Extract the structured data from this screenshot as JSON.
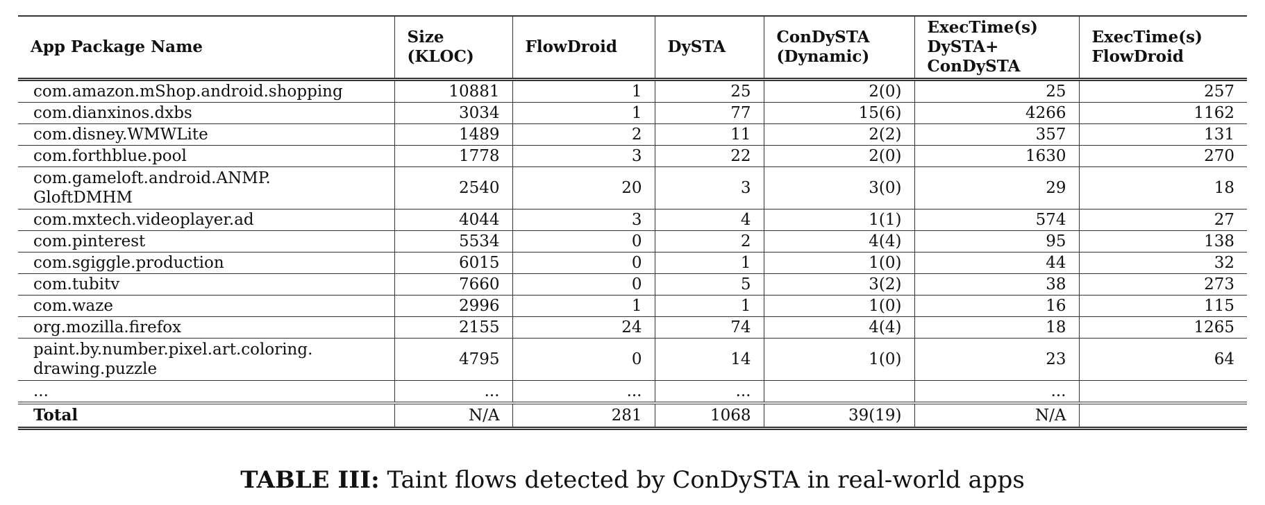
{
  "table": {
    "headers": [
      [
        "App Package Name"
      ],
      [
        "Size",
        "(KLOC)"
      ],
      [
        "FlowDroid"
      ],
      [
        "DySTA"
      ],
      [
        "ConDySTA",
        "(Dynamic)"
      ],
      [
        "ExecTime(s)",
        "DySTA+",
        "ConDySTA"
      ],
      [
        "ExecTime(s)",
        "FlowDroid"
      ]
    ],
    "rows": [
      {
        "app": [
          "com.amazon.mShop.android.shopping"
        ],
        "size": "10881",
        "flowdroid": "1",
        "dysta": "25",
        "condysta": "2(0)",
        "exec_dysta_condysta": "25",
        "exec_flowdroid": "257"
      },
      {
        "app": [
          "com.dianxinos.dxbs"
        ],
        "size": "3034",
        "flowdroid": "1",
        "dysta": "77",
        "condysta": "15(6)",
        "exec_dysta_condysta": "4266",
        "exec_flowdroid": "1162"
      },
      {
        "app": [
          "com.disney.WMWLite"
        ],
        "size": "1489",
        "flowdroid": "2",
        "dysta": "11",
        "condysta": "2(2)",
        "exec_dysta_condysta": "357",
        "exec_flowdroid": "131"
      },
      {
        "app": [
          "com.forthblue.pool"
        ],
        "size": "1778",
        "flowdroid": "3",
        "dysta": "22",
        "condysta": "2(0)",
        "exec_dysta_condysta": "1630",
        "exec_flowdroid": "270"
      },
      {
        "app": [
          "com.gameloft.android.ANMP.",
          "GloftDMHM"
        ],
        "size": "2540",
        "flowdroid": "20",
        "dysta": "3",
        "condysta": "3(0)",
        "exec_dysta_condysta": "29",
        "exec_flowdroid": "18"
      },
      {
        "app": [
          "com.mxtech.videoplayer.ad"
        ],
        "size": "4044",
        "flowdroid": "3",
        "dysta": "4",
        "condysta": "1(1)",
        "exec_dysta_condysta": "574",
        "exec_flowdroid": "27"
      },
      {
        "app": [
          "com.pinterest"
        ],
        "size": "5534",
        "flowdroid": "0",
        "dysta": "2",
        "condysta": "4(4)",
        "exec_dysta_condysta": "95",
        "exec_flowdroid": "138"
      },
      {
        "app": [
          "com.sgiggle.production"
        ],
        "size": "6015",
        "flowdroid": "0",
        "dysta": "1",
        "condysta": "1(0)",
        "exec_dysta_condysta": "44",
        "exec_flowdroid": "32"
      },
      {
        "app": [
          "com.tubitv"
        ],
        "size": "7660",
        "flowdroid": "0",
        "dysta": "5",
        "condysta": "3(2)",
        "exec_dysta_condysta": "38",
        "exec_flowdroid": "273"
      },
      {
        "app": [
          "com.waze"
        ],
        "size": "2996",
        "flowdroid": "1",
        "dysta": "1",
        "condysta": "1(0)",
        "exec_dysta_condysta": "16",
        "exec_flowdroid": "115"
      },
      {
        "app": [
          "org.mozilla.firefox"
        ],
        "size": "2155",
        "flowdroid": "24",
        "dysta": "74",
        "condysta": "4(4)",
        "exec_dysta_condysta": "18",
        "exec_flowdroid": "1265"
      },
      {
        "app": [
          "paint.by.number.pixel.art.coloring.",
          "drawing.puzzle"
        ],
        "size": "4795",
        "flowdroid": "0",
        "dysta": "14",
        "condysta": "1(0)",
        "exec_dysta_condysta": "23",
        "exec_flowdroid": "64"
      }
    ],
    "ellipsis_row": {
      "app": "...",
      "size": "...",
      "flowdroid": "...",
      "dysta": "...",
      "condysta": "",
      "exec_dysta_condysta": "...",
      "exec_flowdroid": ""
    },
    "total_row": {
      "label": "Total",
      "size": "N/A",
      "flowdroid": "281",
      "dysta": "1068",
      "condysta": "39(19)",
      "exec_dysta_condysta": "N/A",
      "exec_flowdroid": ""
    }
  },
  "caption": {
    "label": "TABLE III:",
    "text": " Taint flows detected by ConDySTA in real-world apps"
  }
}
